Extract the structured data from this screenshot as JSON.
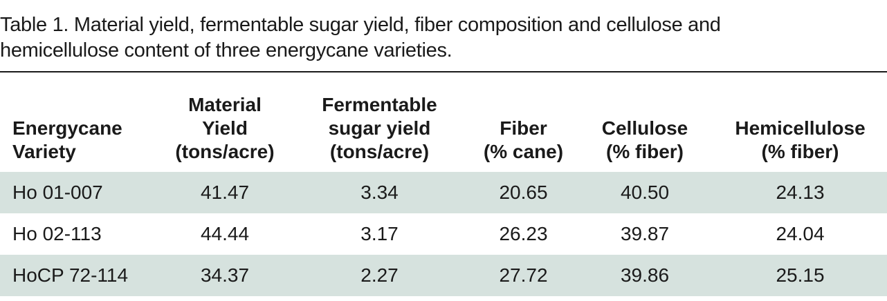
{
  "caption": {
    "line1": "Table 1. Material yield, fermentable sugar yield, fiber composition and cellulose and",
    "line2": "hemicellulose content of three energycane varieties."
  },
  "table": {
    "headers": [
      [
        "Energycane",
        "Variety"
      ],
      [
        "Material",
        "Yield",
        "(tons/acre)"
      ],
      [
        "Fermentable",
        "sugar yield",
        "(tons/acre)"
      ],
      [
        "Fiber",
        "(% cane)"
      ],
      [
        "Cellulose",
        "(% fiber)"
      ],
      [
        "Hemicellulose",
        "(% fiber)"
      ]
    ],
    "rows": [
      [
        "Ho 01-007",
        "41.47",
        "3.34",
        "20.65",
        "40.50",
        "24.13"
      ],
      [
        "Ho 02-113",
        "44.44",
        "3.17",
        "26.23",
        "39.87",
        "24.04"
      ],
      [
        "HoCP 72-114",
        "34.37",
        "2.27",
        "27.72",
        "39.86",
        "25.15"
      ]
    ]
  }
}
